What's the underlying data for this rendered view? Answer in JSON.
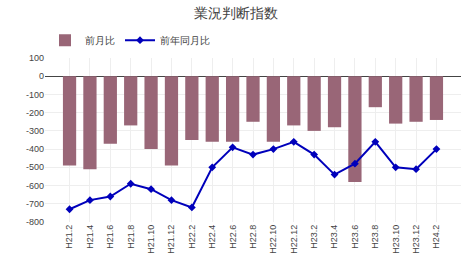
{
  "chart_data": {
    "type": "bar",
    "title": "業況判断指数",
    "categories": [
      "H21.2",
      "H21.4",
      "H21.6",
      "H21.8",
      "H21.10",
      "H21.12",
      "H22.2",
      "H22.4",
      "H22.6",
      "H22.8",
      "H22.10",
      "H22.12",
      "H23.2",
      "H23.4",
      "H23.6",
      "H23.8",
      "H23.10",
      "H23.12",
      "H24.2"
    ],
    "series": [
      {
        "name": "前月比",
        "type": "bar",
        "color": "#996677",
        "values": [
          -490,
          -510,
          -370,
          -270,
          -400,
          -490,
          -350,
          -360,
          -360,
          -250,
          -360,
          -270,
          -300,
          -280,
          -580,
          -170,
          -260,
          -250,
          -240
        ]
      },
      {
        "name": "前年同月比",
        "type": "line",
        "color": "#0000bb",
        "marker": "diamond",
        "values": [
          -730,
          -680,
          -660,
          -590,
          -620,
          -680,
          -720,
          -500,
          -390,
          -430,
          -400,
          -360,
          -430,
          -540,
          -480,
          -360,
          -500,
          -510,
          -400
        ]
      }
    ],
    "ylim": [
      -800,
      100
    ],
    "yticks": [
      100,
      0,
      -100,
      -200,
      -300,
      -400,
      -500,
      -600,
      -700,
      -800
    ],
    "grid": true,
    "legend": "upper left"
  }
}
